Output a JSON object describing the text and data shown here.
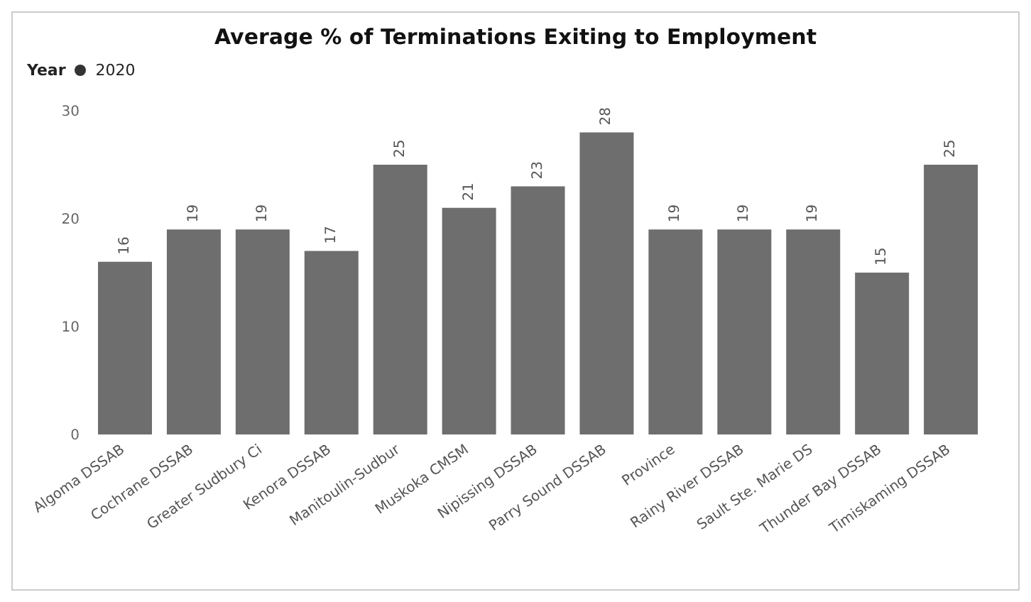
{
  "chart_data": {
    "type": "bar",
    "title": "Average % of Terminations Exiting to Employment",
    "annotations": [
      "Year",
      "2020"
    ],
    "categories": [
      "Algoma DSSAB",
      "Cochrane DSSAB",
      "Greater Sudbury Ci",
      "Kenora DSSAB",
      "Manitoulin-Sudbur",
      "Muskoka CMSM",
      "Nipissing DSSAB",
      "Parry Sound DSSAB",
      "Province",
      "Rainy River DSSAB",
      "Sault Ste. Marie DS",
      "Thunder Bay DSSAB",
      "Timiskaming DSSAB"
    ],
    "values": [
      16,
      19,
      19,
      17,
      25,
      21,
      23,
      28,
      19,
      19,
      19,
      15,
      25
    ],
    "color": "#6e6e6e",
    "ylim": [
      0,
      30
    ],
    "yticks": [
      0,
      10,
      20,
      30
    ],
    "grid": false,
    "data_labels": true
  }
}
